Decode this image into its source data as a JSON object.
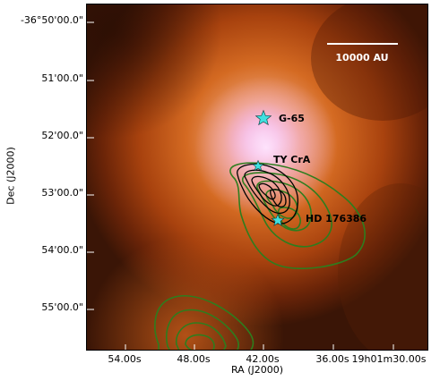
{
  "figure": {
    "x_axis_title": "RA (J2000)",
    "y_axis_title": "Dec (J2000)",
    "x_ticks": [
      "54.00s",
      "48.00s",
      "42.00s",
      "36.00s",
      "19h01m30.00s"
    ],
    "y_ticks": [
      "-36°50'00.0\"",
      "51'00.0\"",
      "52'00.0\"",
      "53'00.0\"",
      "54'00.0\"",
      "55'00.0\""
    ],
    "scale_bar_label": "10000 AU",
    "stars": [
      {
        "label": "G-65"
      },
      {
        "label": "TY CrA"
      },
      {
        "label": "HD 176386"
      }
    ],
    "colors": {
      "background_dark": "#3a1506",
      "nebula_orange": "#c85a18",
      "nebula_core": "#f4c6e6",
      "contour_green": "#2e7d1e",
      "contour_black": "#000000",
      "star_cyan": "#40e0e0"
    }
  }
}
